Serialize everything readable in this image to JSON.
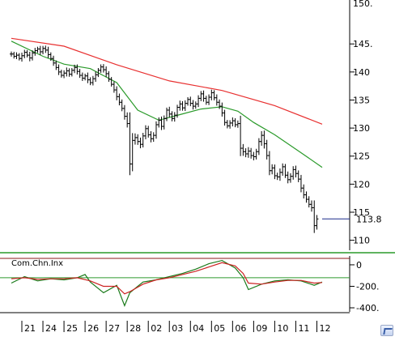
{
  "chart_data": [
    {
      "type": "ohlc",
      "panel": "price",
      "ylim": [
        108.5,
        148.5
      ],
      "yticks": [
        110,
        115,
        120,
        125,
        130,
        135,
        140,
        145
      ],
      "ytick_labels": [
        "110",
        "115",
        "120",
        "125",
        "130",
        "135",
        "140",
        "145."
      ],
      "top_tick_label": "150.",
      "last_price": 113.8,
      "last_price_label": "113.8",
      "grid": false,
      "legend": "none",
      "ohlc_close": [
        143.2,
        142.8,
        143.0,
        142.4,
        142.9,
        143.5,
        143.0,
        142.5,
        143.4,
        143.8,
        144.1,
        143.6,
        144.2,
        143.9,
        143.1,
        142.4,
        141.6,
        140.8,
        140.0,
        139.4,
        139.8,
        140.2,
        139.6,
        140.3,
        140.8,
        140.1,
        139.4,
        138.9,
        139.3,
        138.6,
        138.1,
        138.8,
        139.5,
        140.3,
        140.9,
        140.4,
        139.7,
        138.7,
        137.8,
        136.8,
        135.6,
        134.6,
        133.5,
        132.1,
        130.8,
        123.6,
        127.8,
        128.3,
        127.6,
        127.1,
        128.6,
        129.9,
        128.8,
        128.1,
        128.7,
        130.6,
        131.4,
        130.3,
        131.7,
        133.2,
        132.5,
        131.7,
        132.3,
        133.7,
        134.3,
        133.6,
        134.4,
        135.1,
        134.4,
        133.9,
        134.3,
        135.3,
        136.1,
        135.3,
        134.6,
        135.5,
        136.3,
        135.4,
        134.6,
        133.9,
        132.7,
        131.0,
        130.4,
        130.9,
        131.3,
        130.6,
        130.8,
        126.4,
        125.8,
        125.4,
        125.9,
        125.1,
        124.9,
        125.8,
        127.6,
        128.7,
        127.2,
        125.1,
        122.4,
        122.9,
        121.5,
        121.3,
        122.1,
        123.1,
        121.6,
        120.8,
        121.4,
        122.6,
        121.9,
        120.9,
        119.3,
        118.1,
        117.3,
        116.4,
        115.8,
        112.6,
        113.8
      ],
      "ohlc_spread": [
        0.9,
        0.8,
        1.0,
        0.7,
        1.1,
        0.9,
        0.8,
        1.2,
        0.9,
        1.0,
        0.8,
        1.1,
        0.9,
        1.0,
        1.2,
        0.8,
        1.0,
        0.9,
        1.1,
        0.8,
        1.0,
        1.2,
        0.9,
        0.8,
        1.0,
        1.1,
        0.9,
        1.0,
        0.8,
        1.2,
        0.9,
        1.0,
        1.1,
        0.8,
        0.9,
        1.0,
        1.2,
        0.9,
        0.8,
        1.0,
        1.3,
        1.1,
        1.0,
        1.2,
        1.4,
        4.0,
        2.6,
        1.5,
        1.2,
        1.4,
        1.1,
        1.2,
        1.0,
        1.3,
        1.1,
        1.2,
        1.0,
        1.3,
        1.1,
        0.9,
        1.2,
        1.0,
        1.1,
        0.9,
        1.2,
        1.0,
        1.1,
        0.8,
        1.0,
        1.2,
        0.9,
        1.1,
        1.0,
        1.2,
        0.9,
        1.0,
        1.1,
        0.9,
        1.2,
        1.0,
        1.3,
        1.1,
        0.9,
        1.0,
        1.2,
        0.9,
        1.1,
        2.8,
        1.5,
        1.2,
        1.4,
        1.1,
        1.3,
        1.0,
        1.2,
        1.5,
        1.7,
        1.4,
        1.6,
        1.3,
        1.2,
        1.1,
        1.4,
        1.2,
        1.0,
        1.3,
        1.1,
        1.2,
        1.4,
        1.1,
        1.5,
        1.3,
        1.2,
        1.1,
        1.4,
        2.6,
        1.4
      ],
      "ma_red": {
        "x": [
          0,
          20,
          40,
          60,
          80,
          100,
          118
        ],
        "y": [
          146.0,
          144.6,
          141.3,
          138.4,
          136.7,
          134.0,
          130.7
        ]
      },
      "ma_green": {
        "x": [
          0,
          12,
          20,
          30,
          40,
          48,
          56,
          64,
          72,
          80,
          86,
          92,
          100,
          110,
          118
        ],
        "y": [
          145.5,
          142.8,
          141.4,
          140.6,
          138.1,
          133.2,
          131.4,
          132.4,
          133.4,
          133.8,
          133.0,
          131.0,
          128.8,
          125.6,
          123.0
        ]
      }
    },
    {
      "type": "line",
      "panel": "oscillator",
      "title": "Com.Chn.Inx",
      "ylim": [
        -430,
        90
      ],
      "yticks": [
        0,
        -200,
        -400
      ],
      "ytick_labels": [
        "0",
        "-200.",
        "-400."
      ],
      "reference_lines": [
        {
          "value": 60,
          "color": "#8b1a1a"
        },
        {
          "value": -120,
          "color": "#2e9a2e"
        }
      ],
      "series": [
        {
          "color": "#1a7a1a",
          "x": [
            0,
            5,
            10,
            15,
            20,
            25,
            28,
            30,
            35,
            40,
            43,
            45,
            50,
            55,
            60,
            65,
            70,
            75,
            80,
            85,
            88,
            90,
            95,
            100,
            105,
            110,
            115,
            118
          ],
          "y": [
            -170,
            -110,
            -150,
            -130,
            -140,
            -120,
            -90,
            -160,
            -260,
            -190,
            -380,
            -260,
            -160,
            -140,
            -110,
            -80,
            -40,
            10,
            40,
            -30,
            -120,
            -230,
            -180,
            -150,
            -140,
            -150,
            -190,
            -160
          ]
        },
        {
          "color": "#cc2222",
          "x": [
            0,
            5,
            10,
            15,
            20,
            25,
            30,
            35,
            40,
            43,
            45,
            50,
            55,
            60,
            65,
            70,
            75,
            80,
            85,
            88,
            90,
            95,
            100,
            105,
            110,
            115,
            118
          ],
          "y": [
            -130,
            -120,
            -135,
            -130,
            -130,
            -120,
            -150,
            -200,
            -200,
            -270,
            -250,
            -180,
            -140,
            -120,
            -90,
            -60,
            -20,
            20,
            -10,
            -80,
            -170,
            -180,
            -160,
            -145,
            -145,
            -170,
            -165
          ]
        }
      ]
    },
    {
      "type": "axis",
      "panel": "dates",
      "categories": [
        "21",
        "24",
        "25",
        "26",
        "27",
        "28",
        "02",
        "03",
        "04",
        "05",
        "06",
        "09",
        "10",
        "11",
        "12"
      ],
      "category_index": [
        0,
        8,
        16,
        24,
        32,
        40,
        48,
        56,
        64,
        72,
        80,
        88,
        96,
        104,
        112
      ]
    }
  ],
  "colors": {
    "ma_red": "#e83030",
    "ma_green": "#2a9a2a",
    "bars": "#000000",
    "price_line": "#1a2a8a",
    "green_rule": "#2a9a2a"
  },
  "icons": {
    "corner": "chart-window-icon"
  }
}
